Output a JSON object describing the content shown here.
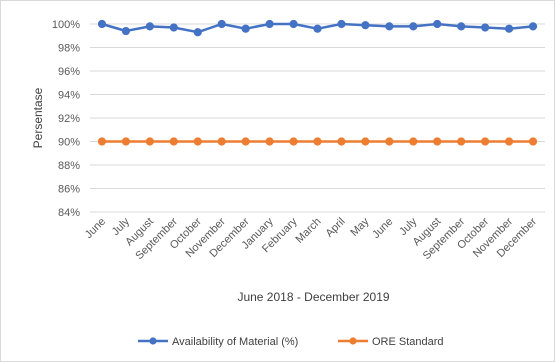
{
  "chart_data": {
    "type": "line",
    "title": "",
    "xlabel": "June 2018 - December 2019",
    "ylabel": "Persentase",
    "ylim": [
      84,
      100
    ],
    "yticks": [
      "84%",
      "86%",
      "88%",
      "90%",
      "92%",
      "94%",
      "96%",
      "98%",
      "100%"
    ],
    "ytick_values": [
      84,
      86,
      88,
      90,
      92,
      94,
      96,
      98,
      100
    ],
    "categories": [
      "June",
      "July",
      "August",
      "September",
      "October",
      "November",
      "December",
      "January",
      "February",
      "March",
      "April",
      "May",
      "June",
      "July",
      "August",
      "September",
      "October",
      "November",
      "December"
    ],
    "series": [
      {
        "name": "Availability of Material (%)",
        "color": "#4472c4",
        "values": [
          100,
          99.4,
          99.8,
          99.7,
          99.3,
          100,
          99.6,
          100,
          100,
          99.6,
          100,
          99.9,
          99.8,
          99.8,
          100,
          99.8,
          99.7,
          99.6,
          99.8
        ]
      },
      {
        "name": "ORE Standard",
        "color": "#ed7d31",
        "values": [
          90,
          90,
          90,
          90,
          90,
          90,
          90,
          90,
          90,
          90,
          90,
          90,
          90,
          90,
          90,
          90,
          90,
          90,
          90
        ]
      }
    ],
    "grid": true,
    "legend": "bottom"
  }
}
